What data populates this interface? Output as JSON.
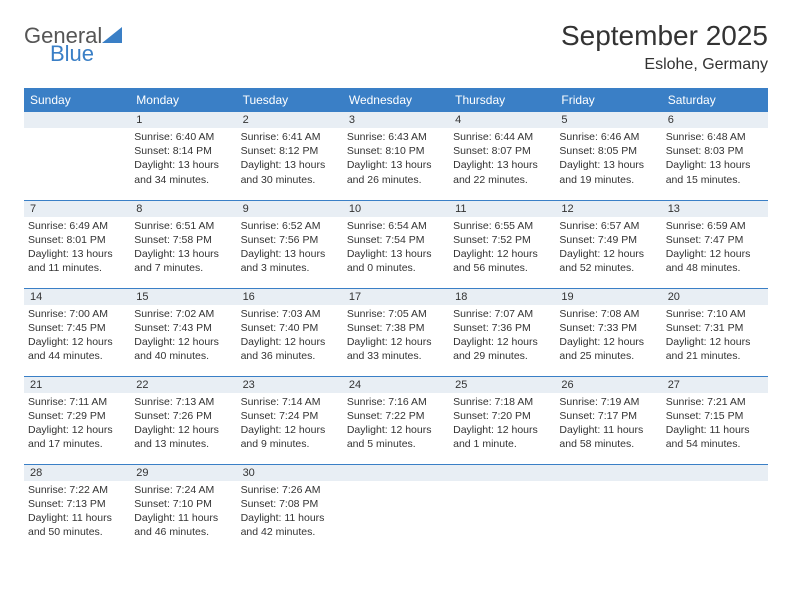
{
  "logo": {
    "text1": "General",
    "text2": "Blue"
  },
  "title": "September 2025",
  "location": "Eslohe, Germany",
  "colors": {
    "header_bg": "#3a7fc6",
    "header_fg": "#ffffff",
    "daynum_bg": "#e8eef4",
    "border": "#3a7fc6",
    "text": "#333333",
    "logo_gray": "#555555",
    "logo_blue": "#3a7fc6",
    "page_bg": "#ffffff"
  },
  "fonts": {
    "title_size_pt": 28,
    "location_size_pt": 16,
    "weekday_size_pt": 12,
    "daynum_size_pt": 11,
    "detail_size_pt": 10.5
  },
  "weekdays": [
    "Sunday",
    "Monday",
    "Tuesday",
    "Wednesday",
    "Thursday",
    "Friday",
    "Saturday"
  ],
  "weeks": [
    [
      null,
      {
        "n": "1",
        "sr": "Sunrise: 6:40 AM",
        "ss": "Sunset: 8:14 PM",
        "dl": "Daylight: 13 hours and 34 minutes."
      },
      {
        "n": "2",
        "sr": "Sunrise: 6:41 AM",
        "ss": "Sunset: 8:12 PM",
        "dl": "Daylight: 13 hours and 30 minutes."
      },
      {
        "n": "3",
        "sr": "Sunrise: 6:43 AM",
        "ss": "Sunset: 8:10 PM",
        "dl": "Daylight: 13 hours and 26 minutes."
      },
      {
        "n": "4",
        "sr": "Sunrise: 6:44 AM",
        "ss": "Sunset: 8:07 PM",
        "dl": "Daylight: 13 hours and 22 minutes."
      },
      {
        "n": "5",
        "sr": "Sunrise: 6:46 AM",
        "ss": "Sunset: 8:05 PM",
        "dl": "Daylight: 13 hours and 19 minutes."
      },
      {
        "n": "6",
        "sr": "Sunrise: 6:48 AM",
        "ss": "Sunset: 8:03 PM",
        "dl": "Daylight: 13 hours and 15 minutes."
      }
    ],
    [
      {
        "n": "7",
        "sr": "Sunrise: 6:49 AM",
        "ss": "Sunset: 8:01 PM",
        "dl": "Daylight: 13 hours and 11 minutes."
      },
      {
        "n": "8",
        "sr": "Sunrise: 6:51 AM",
        "ss": "Sunset: 7:58 PM",
        "dl": "Daylight: 13 hours and 7 minutes."
      },
      {
        "n": "9",
        "sr": "Sunrise: 6:52 AM",
        "ss": "Sunset: 7:56 PM",
        "dl": "Daylight: 13 hours and 3 minutes."
      },
      {
        "n": "10",
        "sr": "Sunrise: 6:54 AM",
        "ss": "Sunset: 7:54 PM",
        "dl": "Daylight: 13 hours and 0 minutes."
      },
      {
        "n": "11",
        "sr": "Sunrise: 6:55 AM",
        "ss": "Sunset: 7:52 PM",
        "dl": "Daylight: 12 hours and 56 minutes."
      },
      {
        "n": "12",
        "sr": "Sunrise: 6:57 AM",
        "ss": "Sunset: 7:49 PM",
        "dl": "Daylight: 12 hours and 52 minutes."
      },
      {
        "n": "13",
        "sr": "Sunrise: 6:59 AM",
        "ss": "Sunset: 7:47 PM",
        "dl": "Daylight: 12 hours and 48 minutes."
      }
    ],
    [
      {
        "n": "14",
        "sr": "Sunrise: 7:00 AM",
        "ss": "Sunset: 7:45 PM",
        "dl": "Daylight: 12 hours and 44 minutes."
      },
      {
        "n": "15",
        "sr": "Sunrise: 7:02 AM",
        "ss": "Sunset: 7:43 PM",
        "dl": "Daylight: 12 hours and 40 minutes."
      },
      {
        "n": "16",
        "sr": "Sunrise: 7:03 AM",
        "ss": "Sunset: 7:40 PM",
        "dl": "Daylight: 12 hours and 36 minutes."
      },
      {
        "n": "17",
        "sr": "Sunrise: 7:05 AM",
        "ss": "Sunset: 7:38 PM",
        "dl": "Daylight: 12 hours and 33 minutes."
      },
      {
        "n": "18",
        "sr": "Sunrise: 7:07 AM",
        "ss": "Sunset: 7:36 PM",
        "dl": "Daylight: 12 hours and 29 minutes."
      },
      {
        "n": "19",
        "sr": "Sunrise: 7:08 AM",
        "ss": "Sunset: 7:33 PM",
        "dl": "Daylight: 12 hours and 25 minutes."
      },
      {
        "n": "20",
        "sr": "Sunrise: 7:10 AM",
        "ss": "Sunset: 7:31 PM",
        "dl": "Daylight: 12 hours and 21 minutes."
      }
    ],
    [
      {
        "n": "21",
        "sr": "Sunrise: 7:11 AM",
        "ss": "Sunset: 7:29 PM",
        "dl": "Daylight: 12 hours and 17 minutes."
      },
      {
        "n": "22",
        "sr": "Sunrise: 7:13 AM",
        "ss": "Sunset: 7:26 PM",
        "dl": "Daylight: 12 hours and 13 minutes."
      },
      {
        "n": "23",
        "sr": "Sunrise: 7:14 AM",
        "ss": "Sunset: 7:24 PM",
        "dl": "Daylight: 12 hours and 9 minutes."
      },
      {
        "n": "24",
        "sr": "Sunrise: 7:16 AM",
        "ss": "Sunset: 7:22 PM",
        "dl": "Daylight: 12 hours and 5 minutes."
      },
      {
        "n": "25",
        "sr": "Sunrise: 7:18 AM",
        "ss": "Sunset: 7:20 PM",
        "dl": "Daylight: 12 hours and 1 minute."
      },
      {
        "n": "26",
        "sr": "Sunrise: 7:19 AM",
        "ss": "Sunset: 7:17 PM",
        "dl": "Daylight: 11 hours and 58 minutes."
      },
      {
        "n": "27",
        "sr": "Sunrise: 7:21 AM",
        "ss": "Sunset: 7:15 PM",
        "dl": "Daylight: 11 hours and 54 minutes."
      }
    ],
    [
      {
        "n": "28",
        "sr": "Sunrise: 7:22 AM",
        "ss": "Sunset: 7:13 PM",
        "dl": "Daylight: 11 hours and 50 minutes."
      },
      {
        "n": "29",
        "sr": "Sunrise: 7:24 AM",
        "ss": "Sunset: 7:10 PM",
        "dl": "Daylight: 11 hours and 46 minutes."
      },
      {
        "n": "30",
        "sr": "Sunrise: 7:26 AM",
        "ss": "Sunset: 7:08 PM",
        "dl": "Daylight: 11 hours and 42 minutes."
      },
      null,
      null,
      null,
      null
    ]
  ]
}
